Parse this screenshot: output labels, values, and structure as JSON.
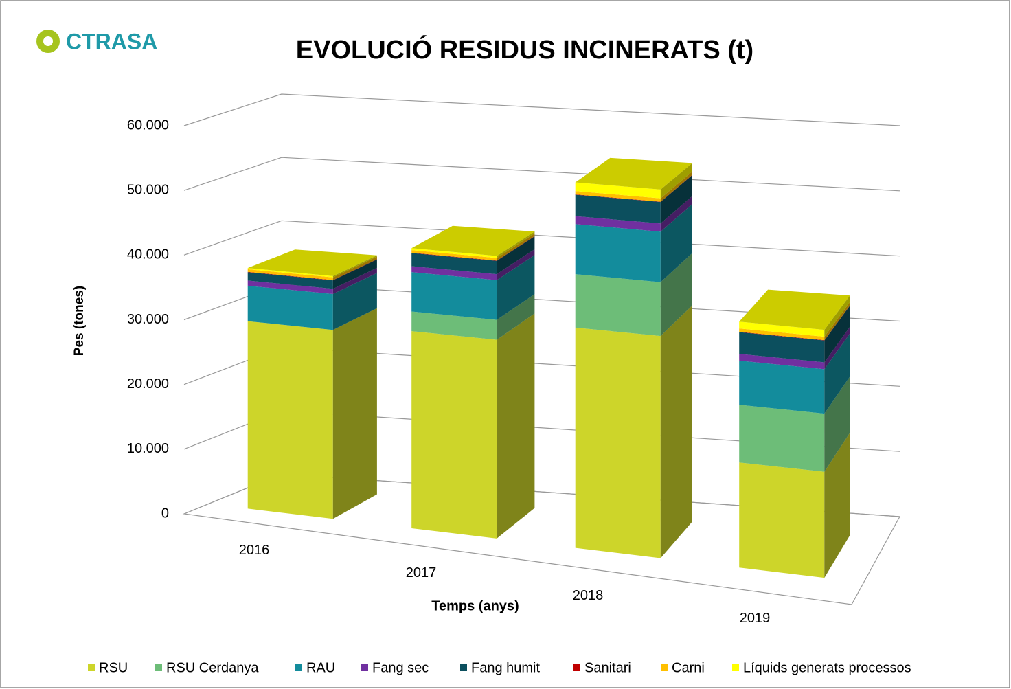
{
  "chart_data": {
    "type": "bar3d_stacked",
    "logo": "CTRASA",
    "title": "EVOLUCIÓ RESIDUS INCINERATS (t)",
    "x_label": "Temps (anys)",
    "y_label": "Pes (tones)",
    "categories": [
      "2016",
      "2017",
      "2018",
      "2019"
    ],
    "series": [
      {
        "name": "RSU",
        "color": "#cdd52a",
        "values": [
          29000,
          30000,
          33000,
          15500
        ]
      },
      {
        "name": "RSU Cerdanya",
        "color": "#6dbd78",
        "values": [
          0,
          3000,
          8000,
          8500
        ]
      },
      {
        "name": "RAU",
        "color": "#138c9c",
        "values": [
          5500,
          6000,
          7500,
          6500
        ]
      },
      {
        "name": "Fang sec",
        "color": "#7030a0",
        "values": [
          800,
          900,
          1200,
          1000
        ]
      },
      {
        "name": "Fang humit",
        "color": "#0c4f5e",
        "values": [
          1300,
          2000,
          3200,
          3200
        ]
      },
      {
        "name": "Sanitari",
        "color": "#c00000",
        "values": [
          50,
          50,
          50,
          50
        ]
      },
      {
        "name": "Carni",
        "color": "#ffc000",
        "values": [
          400,
          400,
          500,
          500
        ]
      },
      {
        "name": "Líquids generats processos",
        "color": "#ffff00",
        "values": [
          200,
          300,
          1300,
          1000
        ]
      }
    ],
    "ylim": [
      0,
      60000
    ],
    "yticks": [
      0,
      {
        "value": 10000,
        "label": "10.000"
      },
      {
        "value": 20000,
        "label": "20.000"
      },
      {
        "value": 30000,
        "label": "30.000"
      },
      {
        "value": 40000,
        "label": "40.000"
      },
      {
        "value": 50000,
        "label": "50.000"
      },
      {
        "value": 60000,
        "label": "60.000"
      }
    ],
    "grid": true,
    "legend": "bottom"
  }
}
